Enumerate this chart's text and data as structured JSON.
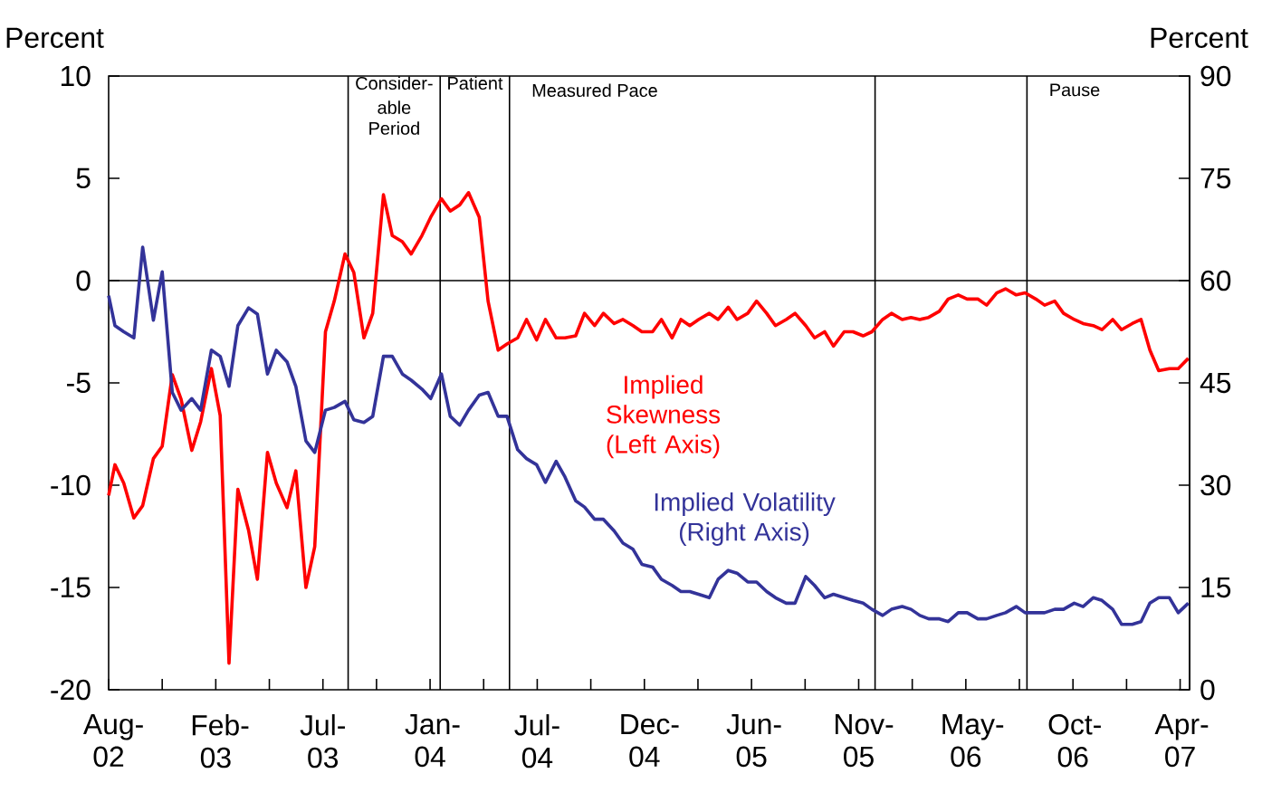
{
  "chart_data": {
    "type": "line",
    "ylabel": "Percent",
    "y2label": "Percent",
    "x": [
      "2002-08-22",
      "2002-09-01",
      "2002-09-15",
      "2002-10-01",
      "2002-10-15",
      "2002-11-01",
      "2002-11-15",
      "2002-12-01",
      "2002-12-15",
      "2003-01-01",
      "2003-01-15",
      "2003-02-01",
      "2003-02-15",
      "2003-03-01",
      "2003-03-15",
      "2003-04-01",
      "2003-04-15",
      "2003-05-01",
      "2003-05-15",
      "2003-06-01",
      "2003-06-15",
      "2003-07-01",
      "2003-07-15",
      "2003-08-01",
      "2003-08-15",
      "2003-09-01",
      "2003-09-15",
      "2003-10-01",
      "2003-10-15",
      "2003-11-01",
      "2003-11-15",
      "2003-12-01",
      "2003-12-15",
      "2004-01-01",
      "2004-01-15",
      "2004-02-01",
      "2004-02-15",
      "2004-03-01",
      "2004-03-15",
      "2004-04-01",
      "2004-04-15",
      "2004-05-01",
      "2004-05-15",
      "2004-06-01",
      "2004-06-15",
      "2004-07-01",
      "2004-07-15",
      "2004-08-01",
      "2004-08-15",
      "2004-09-01",
      "2004-09-15",
      "2004-10-01",
      "2004-10-15",
      "2004-11-01",
      "2004-11-15",
      "2004-12-01",
      "2004-12-15",
      "2005-01-01",
      "2005-01-15",
      "2005-02-01",
      "2005-02-15",
      "2005-03-01",
      "2005-03-15",
      "2005-04-01",
      "2005-04-15",
      "2005-05-01",
      "2005-05-15",
      "2005-06-01",
      "2005-06-15",
      "2005-07-01",
      "2005-07-15",
      "2005-08-01",
      "2005-08-15",
      "2005-09-01",
      "2005-09-15",
      "2005-10-01",
      "2005-10-15",
      "2005-11-01",
      "2005-11-15",
      "2005-12-01",
      "2005-12-15",
      "2006-01-01",
      "2006-01-15",
      "2006-02-01",
      "2006-02-15",
      "2006-03-01",
      "2006-03-15",
      "2006-04-01",
      "2006-04-15",
      "2006-05-01",
      "2006-05-15",
      "2006-06-01",
      "2006-06-15",
      "2006-07-01",
      "2006-07-15",
      "2006-08-01",
      "2006-08-15",
      "2006-09-01",
      "2006-09-15",
      "2006-10-01",
      "2006-10-15",
      "2006-11-01",
      "2006-11-15",
      "2006-12-01",
      "2006-12-15",
      "2007-01-01",
      "2007-01-15",
      "2007-02-01",
      "2007-02-15",
      "2007-03-01",
      "2007-03-15",
      "2007-04-01",
      "2007-04-15",
      "2007-05-01"
    ],
    "xlim": [
      "2002-08-22",
      "2007-05-03"
    ],
    "xticks": [
      {
        "value": "2002-08-22",
        "label": "Aug-02"
      },
      {
        "value": "2002-11-15",
        "label": null
      },
      {
        "value": "2003-02-08",
        "label": "Feb-03"
      },
      {
        "value": "2003-05-04",
        "label": null
      },
      {
        "value": "2003-07-28",
        "label": "Jul-03"
      },
      {
        "value": "2003-10-21",
        "label": null
      },
      {
        "value": "2004-01-14",
        "label": "Jan-04"
      },
      {
        "value": "2004-04-08",
        "label": null
      },
      {
        "value": "2004-07-02",
        "label": "Jul-04"
      },
      {
        "value": "2004-09-25",
        "label": null
      },
      {
        "value": "2004-12-19",
        "label": "Dec-04"
      },
      {
        "value": "2005-03-14",
        "label": null
      },
      {
        "value": "2005-06-07",
        "label": "Jun-05"
      },
      {
        "value": "2005-08-31",
        "label": null
      },
      {
        "value": "2005-11-24",
        "label": "Nov-05"
      },
      {
        "value": "2006-02-17",
        "label": null
      },
      {
        "value": "2006-05-13",
        "label": "May-06"
      },
      {
        "value": "2006-08-06",
        "label": null
      },
      {
        "value": "2006-10-30",
        "label": "Oct-06"
      },
      {
        "value": "2007-01-23",
        "label": null
      },
      {
        "value": "2007-04-18",
        "label": "Apr-07"
      }
    ],
    "ylim": [
      -20,
      10
    ],
    "yticks": [
      -20,
      -15,
      -10,
      -5,
      0,
      5,
      10
    ],
    "y2lim": [
      0,
      90
    ],
    "y2ticks": [
      0,
      15,
      30,
      45,
      60,
      75,
      90
    ],
    "series": [
      {
        "name": "Implied Skewness (Left Axis)",
        "color": "#ff0000",
        "values": [
          -10.5,
          -9.0,
          -9.9,
          -11.6,
          -11.0,
          -8.7,
          -8.1,
          -4.6,
          -5.8,
          -8.3,
          -6.9,
          -4.3,
          -6.6,
          -18.7,
          -10.2,
          -12.2,
          -14.6,
          -8.4,
          -9.9,
          -11.1,
          -9.3,
          -15.0,
          -13.0,
          -2.5,
          -1.0,
          1.3,
          0.4,
          -2.8,
          -1.6,
          4.2,
          2.2,
          1.9,
          1.3,
          2.2,
          3.1,
          4.0,
          3.4,
          3.7,
          4.3,
          3.1,
          -1.0,
          -3.4,
          -3.1,
          -2.8,
          -1.9,
          -2.9,
          -1.9,
          -2.8,
          -2.8,
          -2.7,
          -1.6,
          -2.2,
          -1.6,
          -2.1,
          -1.9,
          -2.2,
          -2.5,
          -2.5,
          -1.9,
          -2.8,
          -1.9,
          -2.2,
          -1.9,
          -1.6,
          -1.9,
          -1.3,
          -1.9,
          -1.6,
          -1.0,
          -1.6,
          -2.2,
          -1.9,
          -1.6,
          -2.2,
          -2.8,
          -2.5,
          -3.2,
          -2.5,
          -2.5,
          -2.7,
          -2.5,
          -1.9,
          -1.6,
          -1.9,
          -1.8,
          -1.9,
          -1.8,
          -1.5,
          -0.9,
          -0.7,
          -0.9,
          -0.9,
          -1.2,
          -0.6,
          -0.4,
          -0.7,
          -0.6,
          -0.9,
          -1.2,
          -1.0,
          -1.6,
          -1.9,
          -2.1,
          -2.2,
          -2.4,
          -1.9,
          -2.4,
          -2.1,
          -1.9,
          -3.4,
          -4.4,
          -4.3,
          -4.3,
          -3.8
        ]
      },
      {
        "name": "Implied Volatility (Right Axis)",
        "color": "#333399",
        "axis": "y2",
        "values": [
          57.8,
          53.4,
          52.5,
          51.6,
          64.9,
          54.2,
          61.3,
          43.6,
          41.0,
          42.7,
          41.0,
          49.8,
          48.9,
          44.5,
          53.4,
          56.0,
          55.1,
          46.3,
          49.8,
          48.1,
          44.5,
          36.5,
          34.8,
          41.0,
          41.4,
          42.3,
          39.6,
          39.2,
          40.1,
          48.9,
          48.9,
          46.3,
          45.4,
          44.1,
          42.7,
          46.3,
          40.1,
          38.8,
          41.0,
          43.2,
          43.6,
          40.1,
          40.1,
          35.2,
          33.9,
          33.0,
          30.4,
          33.5,
          31.2,
          27.7,
          26.8,
          25.0,
          25.0,
          23.3,
          21.5,
          20.6,
          18.4,
          18.0,
          16.2,
          15.3,
          14.4,
          14.4,
          14.0,
          13.5,
          16.2,
          17.5,
          17.1,
          15.8,
          15.8,
          14.4,
          13.5,
          12.7,
          12.7,
          16.6,
          15.3,
          13.5,
          14.0,
          13.5,
          13.1,
          12.7,
          11.8,
          10.9,
          11.8,
          12.2,
          11.8,
          10.9,
          10.4,
          10.4,
          10.0,
          11.3,
          11.3,
          10.4,
          10.4,
          10.9,
          11.3,
          12.2,
          11.3,
          11.3,
          11.3,
          11.8,
          11.8,
          12.7,
          12.2,
          13.5,
          13.1,
          11.8,
          9.6,
          9.6,
          10.0,
          12.7,
          13.5,
          13.5,
          11.3,
          12.7
        ]
      }
    ],
    "ref_lines": [
      {
        "axis": "y",
        "value": 0
      },
      {
        "axis": "x",
        "value": "2003-09-06",
        "label": "Consider-able Period"
      },
      {
        "axis": "x",
        "value": "2004-01-30",
        "label": "Patient"
      },
      {
        "axis": "x",
        "value": "2004-05-19",
        "label": "Measured Pace"
      },
      {
        "axis": "x",
        "value": "2005-12-20"
      },
      {
        "axis": "x",
        "value": "2006-08-18",
        "label": "Pause"
      }
    ]
  }
}
